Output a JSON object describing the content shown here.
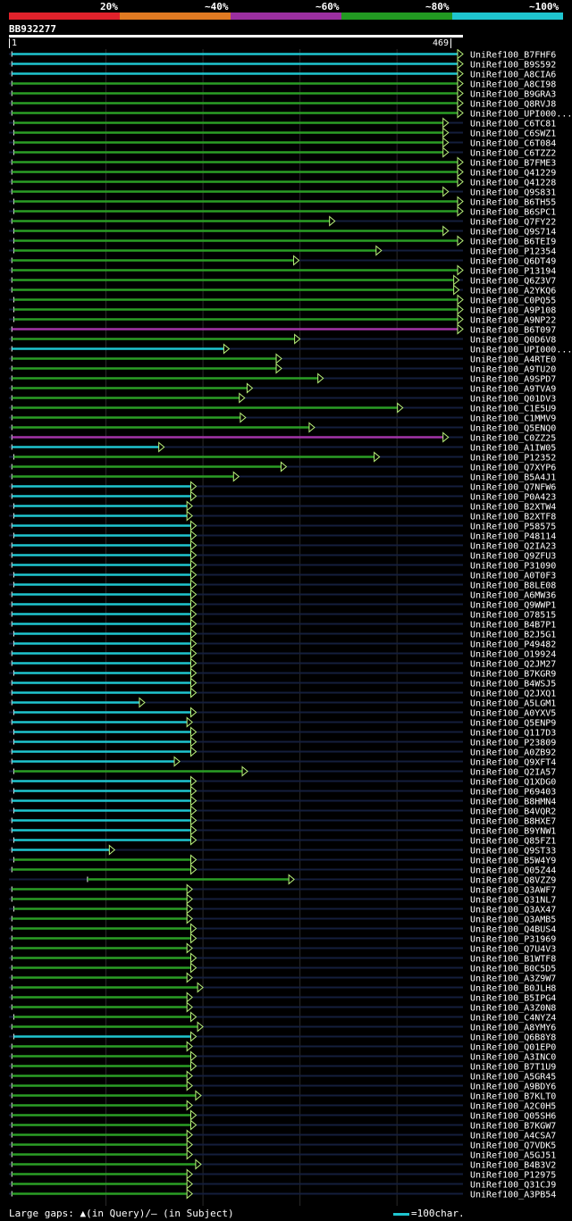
{
  "legend": {
    "labels": [
      "20%",
      "~40%",
      "~60%",
      "~80%",
      "~100%"
    ],
    "colors": [
      "#e0222b",
      "#e07a22",
      "#9b2fa0",
      "#229a22",
      "#1fc5cf"
    ]
  },
  "query": {
    "id": "BB932277",
    "start": "1",
    "end": "469",
    "length": 469
  },
  "colors": {
    "cyan": "#1fc5cf",
    "green": "#2a9d25",
    "purple": "#a334a8",
    "triangle": "#b9f27a",
    "backbone": "#141e3c",
    "gridline": "#2a2a2a"
  },
  "hits": [
    {
      "name": "UniRef100_B7FHF6",
      "c": "cyan",
      "s": 4,
      "e": 469
    },
    {
      "name": "UniRef100_B9S592",
      "c": "cyan",
      "s": 4,
      "e": 469
    },
    {
      "name": "UniRef100_A8CIA6",
      "c": "cyan",
      "s": 4,
      "e": 469
    },
    {
      "name": "UniRef100_A8CI98",
      "c": "green",
      "s": 4,
      "e": 469
    },
    {
      "name": "UniRef100_B9GRA3",
      "c": "green",
      "s": 4,
      "e": 469
    },
    {
      "name": "UniRef100_Q8RVJ8",
      "c": "green",
      "s": 4,
      "e": 469
    },
    {
      "name": "UniRef100_UPI000...",
      "c": "green",
      "s": 4,
      "e": 469
    },
    {
      "name": "UniRef100_C6TC81",
      "c": "green",
      "s": 6,
      "e": 454
    },
    {
      "name": "UniRef100_C6SWZ1",
      "c": "green",
      "s": 6,
      "e": 454
    },
    {
      "name": "UniRef100_C6T084",
      "c": "green",
      "s": 6,
      "e": 454
    },
    {
      "name": "UniRef100_C6TZZ2",
      "c": "green",
      "s": 6,
      "e": 454
    },
    {
      "name": "UniRef100_B7FME3",
      "c": "green",
      "s": 4,
      "e": 469
    },
    {
      "name": "UniRef100_Q41229",
      "c": "green",
      "s": 4,
      "e": 469
    },
    {
      "name": "UniRef100_Q41228",
      "c": "green",
      "s": 4,
      "e": 469
    },
    {
      "name": "UniRef100_Q9S831",
      "c": "green",
      "s": 4,
      "e": 454
    },
    {
      "name": "UniRef100_B6TH55",
      "c": "green",
      "s": 6,
      "e": 469
    },
    {
      "name": "UniRef100_B6SPC1",
      "c": "green",
      "s": 6,
      "e": 469
    },
    {
      "name": "UniRef100_Q7FY22",
      "c": "green",
      "s": 4,
      "e": 337
    },
    {
      "name": "UniRef100_Q9S714",
      "c": "green",
      "s": 6,
      "e": 454
    },
    {
      "name": "UniRef100_B6TEI9",
      "c": "green",
      "s": 6,
      "e": 469
    },
    {
      "name": "UniRef100_P12354",
      "c": "green",
      "s": 6,
      "e": 385
    },
    {
      "name": "UniRef100_Q6DT49",
      "c": "green",
      "s": 4,
      "e": 300
    },
    {
      "name": "UniRef100_P13194",
      "c": "green",
      "s": 4,
      "e": 469
    },
    {
      "name": "UniRef100_Q6Z3V7",
      "c": "green",
      "s": 4,
      "e": 465
    },
    {
      "name": "UniRef100_A2YKQ6",
      "c": "green",
      "s": 4,
      "e": 465
    },
    {
      "name": "UniRef100_C0PQ55",
      "c": "green",
      "s": 6,
      "e": 469
    },
    {
      "name": "UniRef100_A9P108",
      "c": "green",
      "s": 6,
      "e": 469
    },
    {
      "name": "UniRef100_A9NP22",
      "c": "green",
      "s": 6,
      "e": 469
    },
    {
      "name": "UniRef100_B6T097",
      "c": "purple",
      "s": 4,
      "e": 469
    },
    {
      "name": "UniRef100_Q0D6V8",
      "c": "green",
      "s": 4,
      "e": 301
    },
    {
      "name": "UniRef100_UPI000...",
      "c": "cyan",
      "s": 4,
      "e": 228
    },
    {
      "name": "UniRef100_A4RTE0",
      "c": "green",
      "s": 4,
      "e": 282
    },
    {
      "name": "UniRef100_A9TU20",
      "c": "green",
      "s": 4,
      "e": 282
    },
    {
      "name": "UniRef100_A9SPD7",
      "c": "green",
      "s": 4,
      "e": 325
    },
    {
      "name": "UniRef100_A9TVA9",
      "c": "green",
      "s": 4,
      "e": 252
    },
    {
      "name": "UniRef100_Q01DV3",
      "c": "green",
      "s": 4,
      "e": 244
    },
    {
      "name": "UniRef100_C1E5U9",
      "c": "green",
      "s": 4,
      "e": 407
    },
    {
      "name": "UniRef100_C1MMV9",
      "c": "green",
      "s": 4,
      "e": 245
    },
    {
      "name": "UniRef100_Q5ENQ0",
      "c": "green",
      "s": 4,
      "e": 316
    },
    {
      "name": "UniRef100_C0ZZ25",
      "c": "purple",
      "s": 4,
      "e": 454
    },
    {
      "name": "UniRef100_A1IW05",
      "c": "cyan",
      "s": 4,
      "e": 161
    },
    {
      "name": "UniRef100_P12352",
      "c": "green",
      "s": 6,
      "e": 383
    },
    {
      "name": "UniRef100_Q7XYP6",
      "c": "green",
      "s": 4,
      "e": 287
    },
    {
      "name": "UniRef100_B5A4J1",
      "c": "green",
      "s": 4,
      "e": 238
    },
    {
      "name": "UniRef100_Q7NFW6",
      "c": "cyan",
      "s": 4,
      "e": 194
    },
    {
      "name": "UniRef100_P0A423",
      "c": "cyan",
      "s": 4,
      "e": 194
    },
    {
      "name": "UniRef100_B2XTW4",
      "c": "cyan",
      "s": 6,
      "e": 190
    },
    {
      "name": "UniRef100_B2XTF8",
      "c": "cyan",
      "s": 6,
      "e": 190
    },
    {
      "name": "UniRef100_P58575",
      "c": "cyan",
      "s": 4,
      "e": 194
    },
    {
      "name": "UniRef100_P48114",
      "c": "cyan",
      "s": 6,
      "e": 194
    },
    {
      "name": "UniRef100_Q2IA23",
      "c": "cyan",
      "s": 4,
      "e": 194
    },
    {
      "name": "UniRef100_Q9ZFU3",
      "c": "cyan",
      "s": 4,
      "e": 194
    },
    {
      "name": "UniRef100_P31090",
      "c": "cyan",
      "s": 4,
      "e": 194
    },
    {
      "name": "UniRef100_A0T0F3",
      "c": "cyan",
      "s": 6,
      "e": 194
    },
    {
      "name": "UniRef100_B8LE08",
      "c": "cyan",
      "s": 6,
      "e": 194
    },
    {
      "name": "UniRef100_A6MW36",
      "c": "cyan",
      "s": 4,
      "e": 194
    },
    {
      "name": "UniRef100_Q9WWP1",
      "c": "cyan",
      "s": 4,
      "e": 194
    },
    {
      "name": "UniRef100_O78515",
      "c": "cyan",
      "s": 4,
      "e": 194
    },
    {
      "name": "UniRef100_B4B7P1",
      "c": "cyan",
      "s": 4,
      "e": 194
    },
    {
      "name": "UniRef100_B2J5G1",
      "c": "cyan",
      "s": 6,
      "e": 194
    },
    {
      "name": "UniRef100_P49482",
      "c": "cyan",
      "s": 6,
      "e": 194
    },
    {
      "name": "UniRef100_O19924",
      "c": "cyan",
      "s": 4,
      "e": 194
    },
    {
      "name": "UniRef100_Q2JM27",
      "c": "cyan",
      "s": 4,
      "e": 194
    },
    {
      "name": "UniRef100_B7KGR9",
      "c": "cyan",
      "s": 6,
      "e": 194
    },
    {
      "name": "UniRef100_B4WSJ5",
      "c": "cyan",
      "s": 4,
      "e": 194
    },
    {
      "name": "UniRef100_Q2JXQ1",
      "c": "cyan",
      "s": 4,
      "e": 194
    },
    {
      "name": "UniRef100_A5LGM1",
      "c": "cyan",
      "s": 4,
      "e": 141
    },
    {
      "name": "UniRef100_A0YXV5",
      "c": "cyan",
      "s": 6,
      "e": 194
    },
    {
      "name": "UniRef100_Q5ENP9",
      "c": "cyan",
      "s": 4,
      "e": 190
    },
    {
      "name": "UniRef100_Q117D3",
      "c": "cyan",
      "s": 6,
      "e": 194
    },
    {
      "name": "UniRef100_P23809",
      "c": "cyan",
      "s": 6,
      "e": 194
    },
    {
      "name": "UniRef100_A0ZB92",
      "c": "cyan",
      "s": 4,
      "e": 194
    },
    {
      "name": "UniRef100_Q9XFT4",
      "c": "cyan",
      "s": 4,
      "e": 177
    },
    {
      "name": "UniRef100_Q2IA57",
      "c": "green",
      "s": 6,
      "e": 247
    },
    {
      "name": "UniRef100_Q1XDG0",
      "c": "cyan",
      "s": 4,
      "e": 194
    },
    {
      "name": "UniRef100_P69403",
      "c": "cyan",
      "s": 6,
      "e": 194
    },
    {
      "name": "UniRef100_B8HMN4",
      "c": "cyan",
      "s": 4,
      "e": 194
    },
    {
      "name": "UniRef100_B4VQR2",
      "c": "cyan",
      "s": 6,
      "e": 194
    },
    {
      "name": "UniRef100_B8HXE7",
      "c": "cyan",
      "s": 4,
      "e": 194
    },
    {
      "name": "UniRef100_B9YNW1",
      "c": "cyan",
      "s": 4,
      "e": 194
    },
    {
      "name": "UniRef100_Q85FZ1",
      "c": "cyan",
      "s": 6,
      "e": 194
    },
    {
      "name": "UniRef100_Q9ST33",
      "c": "cyan",
      "s": 4,
      "e": 110
    },
    {
      "name": "UniRef100_B5W4Y9",
      "c": "green",
      "s": 6,
      "e": 194
    },
    {
      "name": "UniRef100_Q05Z44",
      "c": "green",
      "s": 4,
      "e": 194
    },
    {
      "name": "UniRef100_Q8VZZ9",
      "c": "green",
      "s": 82,
      "e": 295
    },
    {
      "name": "UniRef100_Q3AWF7",
      "c": "green",
      "s": 4,
      "e": 190
    },
    {
      "name": "UniRef100_Q31NL7",
      "c": "green",
      "s": 4,
      "e": 190
    },
    {
      "name": "UniRef100_Q3AX47",
      "c": "green",
      "s": 6,
      "e": 190
    },
    {
      "name": "UniRef100_Q3AMB5",
      "c": "green",
      "s": 4,
      "e": 190
    },
    {
      "name": "UniRef100_Q4BUS4",
      "c": "green",
      "s": 4,
      "e": 194
    },
    {
      "name": "UniRef100_P31969",
      "c": "green",
      "s": 4,
      "e": 194
    },
    {
      "name": "UniRef100_Q7U4V3",
      "c": "green",
      "s": 4,
      "e": 190
    },
    {
      "name": "UniRef100_B1WTF8",
      "c": "green",
      "s": 4,
      "e": 194
    },
    {
      "name": "UniRef100_B0C5D5",
      "c": "green",
      "s": 4,
      "e": 194
    },
    {
      "name": "UniRef100_A3Z9W7",
      "c": "green",
      "s": 4,
      "e": 190
    },
    {
      "name": "UniRef100_B0JLH8",
      "c": "green",
      "s": 4,
      "e": 201
    },
    {
      "name": "UniRef100_B5IPG4",
      "c": "green",
      "s": 4,
      "e": 190
    },
    {
      "name": "UniRef100_A3Z0N8",
      "c": "green",
      "s": 4,
      "e": 190
    },
    {
      "name": "UniRef100_C4NYZ4",
      "c": "green",
      "s": 6,
      "e": 194
    },
    {
      "name": "UniRef100_A8YMY6",
      "c": "green",
      "s": 4,
      "e": 201
    },
    {
      "name": "UniRef100_Q6B8Y8",
      "c": "cyan",
      "s": 6,
      "e": 194
    },
    {
      "name": "UniRef100_Q01EP0",
      "c": "green",
      "s": 4,
      "e": 190
    },
    {
      "name": "UniRef100_A3INC0",
      "c": "green",
      "s": 4,
      "e": 194
    },
    {
      "name": "UniRef100_B7T1U9",
      "c": "green",
      "s": 4,
      "e": 194
    },
    {
      "name": "UniRef100_A5GR45",
      "c": "green",
      "s": 4,
      "e": 190
    },
    {
      "name": "UniRef100_A9BDY6",
      "c": "green",
      "s": 4,
      "e": 190
    },
    {
      "name": "UniRef100_B7KLT0",
      "c": "green",
      "s": 4,
      "e": 199
    },
    {
      "name": "UniRef100_A2C0H5",
      "c": "green",
      "s": 4,
      "e": 190
    },
    {
      "name": "UniRef100_Q05SH6",
      "c": "green",
      "s": 4,
      "e": 194
    },
    {
      "name": "UniRef100_B7KGW7",
      "c": "green",
      "s": 4,
      "e": 194
    },
    {
      "name": "UniRef100_A4CSA7",
      "c": "green",
      "s": 4,
      "e": 190
    },
    {
      "name": "UniRef100_Q7VDK5",
      "c": "green",
      "s": 4,
      "e": 190
    },
    {
      "name": "UniRef100_A5GJ51",
      "c": "green",
      "s": 4,
      "e": 190
    },
    {
      "name": "UniRef100_B4B3V2",
      "c": "green",
      "s": 4,
      "e": 199
    },
    {
      "name": "UniRef100_P12975",
      "c": "green",
      "s": 4,
      "e": 190
    },
    {
      "name": "UniRef100_Q31CJ9",
      "c": "green",
      "s": 4,
      "e": 190
    },
    {
      "name": "UniRef100_A3PB54",
      "c": "green",
      "s": 4,
      "e": 190
    }
  ],
  "footer": {
    "gap_text": "Large gaps: ▲(in Query)/– (in Subject)",
    "scale_text": "=100char."
  }
}
